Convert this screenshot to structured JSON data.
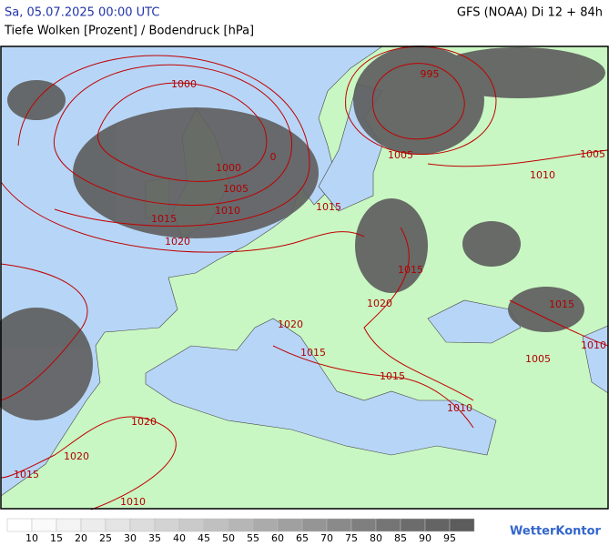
{
  "header": {
    "datetime": "Sa, 05.07.2025 00:00 UTC",
    "model": "GFS (NOAA) Di 12 + 84h",
    "subtitle": "Tiefe Wolken [Prozent] / Bodendruck [hPa]"
  },
  "map": {
    "isobar_labels": [
      1000,
      995,
      0,
      1000,
      1005,
      1010,
      1015,
      1020,
      1005,
      1010,
      1005,
      1015,
      1015,
      1020,
      1020,
      1015,
      1010,
      1005,
      1015,
      1015,
      1010,
      1020,
      1020,
      1015,
      1010
    ]
  },
  "legend": {
    "labels": [
      10,
      15,
      20,
      25,
      30,
      35,
      40,
      45,
      50,
      55,
      60,
      65,
      70,
      75,
      80,
      85,
      90,
      95
    ],
    "colors": [
      "#ffffff",
      "#fafafa",
      "#f3f3f3",
      "#ececec",
      "#e4e4e4",
      "#dcdcdc",
      "#d3d3d3",
      "#cacaca",
      "#c0c0c0",
      "#b6b6b6",
      "#ababab",
      "#a0a0a0",
      "#959595",
      "#8a8a8a",
      "#7f7f7f",
      "#757575",
      "#6c6c6c",
      "#646464",
      "#5c5c5c"
    ]
  },
  "logo": "WetterKontor"
}
